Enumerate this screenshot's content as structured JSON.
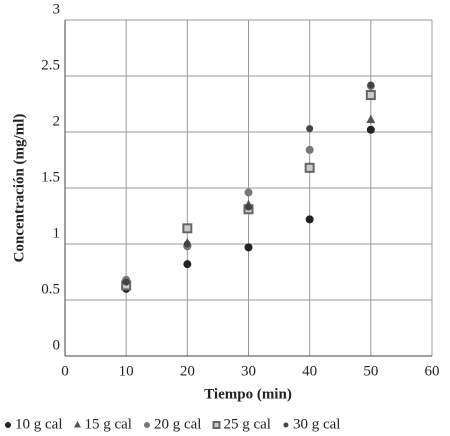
{
  "chart_data": {
    "type": "scatter",
    "x_label": "Tiempo (min)",
    "y_label": "Concentración (mg/ml)",
    "xlim": [
      0,
      60
    ],
    "xticks": [
      0,
      10,
      20,
      30,
      40,
      50,
      60
    ],
    "ylim": [
      0,
      3
    ],
    "yticks": [
      0,
      0.5,
      1,
      1.5,
      2,
      2.5,
      3
    ],
    "grid": true,
    "legend": "bottom",
    "x": [
      10,
      20,
      30,
      40,
      50
    ],
    "series": [
      {
        "name": "10 g cal",
        "color": "#222222",
        "marker": "circle",
        "values": [
          0.6,
          0.82,
          0.97,
          1.22,
          2.02
        ]
      },
      {
        "name": "15 g cal",
        "color": "#555555",
        "marker": "triangle",
        "values": [
          0.65,
          1.01,
          1.35,
          1.69,
          2.11
        ]
      },
      {
        "name": "20 g cal",
        "color": "#777777",
        "marker": "circle",
        "values": [
          0.68,
          0.98,
          1.46,
          1.84,
          2.41
        ]
      },
      {
        "name": "25 g cal",
        "color": "#666666",
        "marker": "square",
        "values": [
          0.63,
          1.14,
          1.31,
          1.68,
          2.33
        ]
      },
      {
        "name": "30 g cal",
        "color": "#444444",
        "marker": "dot",
        "values": [
          0.66,
          1.0,
          1.33,
          2.03,
          2.42
        ]
      }
    ]
  }
}
